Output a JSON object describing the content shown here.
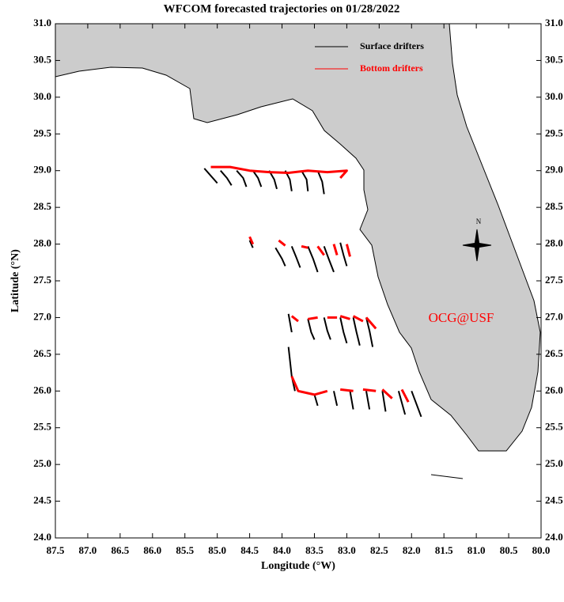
{
  "chart_data": {
    "type": "line",
    "title": "WFCOM forecasted trajectories on 01/28/2022",
    "x_label": "Longitude (°W)",
    "y_label": "Latitude (°N)",
    "annotation": "OCG@USF",
    "annotation_color": "#ff0000",
    "compass_label": "N",
    "legend": "top-right",
    "land_color": "#cccccc",
    "xlim": [
      87.5,
      80.0
    ],
    "ylim": [
      24.0,
      31.0
    ],
    "xticks": [
      87.5,
      {
        "value": 87,
        "label": "87.0"
      },
      86.5,
      {
        "value": 86,
        "label": "86.0"
      },
      85.5,
      {
        "value": 85,
        "label": "85.0"
      },
      84.5,
      {
        "value": 84,
        "label": "84.0"
      },
      83.5,
      {
        "value": 83,
        "label": "83.0"
      },
      82.5,
      {
        "value": 82,
        "label": "82.0"
      },
      81.5,
      {
        "value": 81,
        "label": "81.0"
      },
      80.5,
      {
        "value": 80,
        "label": "80.0"
      }
    ],
    "yticks": [
      {
        "value": 24,
        "label": "24.0"
      },
      24.5,
      {
        "value": 25,
        "label": "25.0"
      },
      25.5,
      {
        "value": 26,
        "label": "26.0"
      },
      26.5,
      {
        "value": 27,
        "label": "27.0"
      },
      27.5,
      {
        "value": 28,
        "label": "28.0"
      },
      28.5,
      {
        "value": 29,
        "label": "29.0"
      },
      29.5,
      {
        "value": 30,
        "label": "30.0"
      },
      30.5,
      {
        "value": 31,
        "label": "31.0"
      }
    ],
    "series": [
      {
        "name": "Surface drifters",
        "color": "#000000",
        "x": [
          85.2,
          85.1,
          85.0,
          null,
          84.95,
          84.85,
          84.78,
          null,
          84.7,
          84.6,
          84.55,
          null,
          84.45,
          84.37,
          84.32,
          null,
          84.2,
          84.12,
          84.08,
          null,
          83.95,
          83.88,
          83.85,
          null,
          83.7,
          83.62,
          83.6,
          null,
          83.45,
          83.38,
          83.35,
          null,
          84.5,
          84.45,
          null,
          84.1,
          84.0,
          83.95,
          null,
          83.85,
          83.78,
          83.72,
          null,
          83.6,
          83.52,
          83.45,
          null,
          83.35,
          83.28,
          83.2,
          null,
          83.1,
          83.05,
          83.0,
          null,
          83.9,
          83.85,
          null,
          83.6,
          83.55,
          83.5,
          null,
          83.35,
          83.3,
          83.25,
          null,
          83.1,
          83.05,
          83.0,
          null,
          82.9,
          82.85,
          82.8,
          null,
          82.7,
          82.65,
          82.6,
          null,
          83.9,
          83.85,
          83.8,
          null,
          83.5,
          83.45,
          null,
          83.2,
          83.15,
          null,
          82.95,
          82.9,
          null,
          82.7,
          82.65,
          null,
          82.45,
          82.4,
          null,
          82.2,
          82.1,
          null,
          82.0,
          81.85
        ],
        "y": [
          29.03,
          28.93,
          28.83,
          null,
          29.0,
          28.9,
          28.8,
          null,
          29.0,
          28.9,
          28.78,
          null,
          29.0,
          28.9,
          28.78,
          null,
          29.0,
          28.88,
          28.75,
          null,
          29.0,
          28.88,
          28.72,
          null,
          29.0,
          28.88,
          28.72,
          null,
          29.0,
          28.85,
          28.68,
          null,
          28.05,
          27.95,
          null,
          27.95,
          27.8,
          27.7,
          null,
          27.97,
          27.82,
          27.68,
          null,
          27.97,
          27.8,
          27.62,
          null,
          27.97,
          27.8,
          27.62,
          null,
          28.02,
          27.85,
          27.7,
          null,
          27.05,
          26.8,
          null,
          26.98,
          26.8,
          26.7,
          null,
          27.0,
          26.82,
          26.7,
          null,
          27.0,
          26.8,
          26.65,
          null,
          27.0,
          26.8,
          26.62,
          null,
          27.0,
          26.82,
          26.6,
          null,
          26.6,
          26.2,
          26.0,
          null,
          25.95,
          25.8,
          null,
          26.0,
          25.8,
          null,
          26.0,
          25.75,
          null,
          26.0,
          25.75,
          null,
          26.0,
          25.72,
          null,
          26.0,
          25.68,
          null,
          26.0,
          25.65
        ]
      },
      {
        "name": "Bottom drifters",
        "color": "#ff0000",
        "x": [
          85.1,
          84.8,
          84.5,
          84.2,
          83.9,
          83.6,
          83.3,
          83.0,
          83.1,
          null,
          84.5,
          84.45,
          null,
          84.05,
          83.95,
          null,
          83.7,
          83.6,
          null,
          83.45,
          83.35,
          null,
          83.2,
          83.15,
          null,
          83.0,
          82.95,
          null,
          83.85,
          83.75,
          null,
          83.6,
          83.45,
          null,
          83.3,
          83.15,
          null,
          83.1,
          82.95,
          null,
          82.9,
          82.75,
          null,
          82.7,
          82.55,
          null,
          83.85,
          83.75,
          83.5,
          83.3,
          null,
          83.1,
          82.9,
          null,
          82.75,
          82.55,
          null,
          82.45,
          82.3,
          null,
          82.15,
          82.05
        ],
        "y": [
          29.05,
          29.05,
          29.0,
          28.98,
          28.97,
          29.0,
          28.98,
          29.0,
          28.9,
          null,
          28.1,
          28.0,
          null,
          28.05,
          27.98,
          null,
          27.97,
          27.95,
          null,
          27.97,
          27.85,
          null,
          28.0,
          27.85,
          null,
          28.0,
          27.83,
          null,
          27.02,
          26.95,
          null,
          26.98,
          27.0,
          null,
          27.0,
          27.0,
          null,
          27.02,
          26.98,
          null,
          27.02,
          26.95,
          null,
          27.0,
          26.85,
          null,
          26.2,
          26.0,
          25.95,
          26.0,
          null,
          26.02,
          26.0,
          null,
          26.02,
          26.0,
          null,
          26.02,
          25.9,
          null,
          26.02,
          25.85
        ]
      }
    ]
  }
}
